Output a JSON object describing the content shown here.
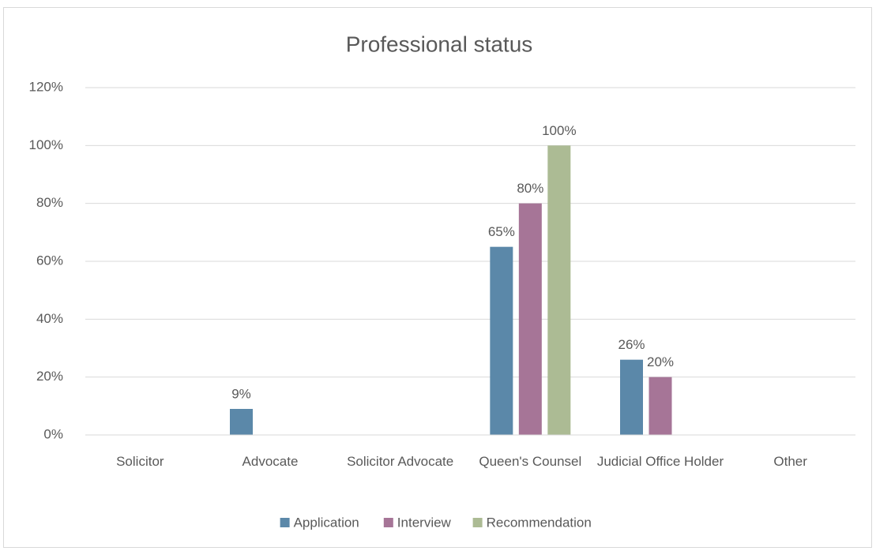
{
  "chart_data": {
    "type": "bar",
    "title": "Professional status",
    "categories": [
      "Solicitor",
      "Advocate",
      "Solicitor Advocate",
      "Queen's Counsel",
      "Judicial Office Holder",
      "Other"
    ],
    "series": [
      {
        "name": "Application",
        "color": "#5b88a9",
        "values": [
          null,
          9,
          null,
          65,
          26,
          null
        ],
        "value_labels": [
          null,
          "9%",
          null,
          "65%",
          "26%",
          null
        ]
      },
      {
        "name": "Interview",
        "color": "#a67597",
        "values": [
          null,
          null,
          null,
          80,
          20,
          null
        ],
        "value_labels": [
          null,
          null,
          null,
          "80%",
          "20%",
          null
        ]
      },
      {
        "name": "Recommendation",
        "color": "#acbb94",
        "values": [
          null,
          null,
          null,
          100,
          null,
          null
        ],
        "value_labels": [
          null,
          null,
          null,
          "100%",
          null,
          null
        ]
      }
    ],
    "ylim": [
      0,
      120
    ],
    "yticks": [
      {
        "value": 0,
        "label": "0%"
      },
      {
        "value": 20,
        "label": "20%"
      },
      {
        "value": 40,
        "label": "40%"
      },
      {
        "value": 60,
        "label": "60%"
      },
      {
        "value": 80,
        "label": "80%"
      },
      {
        "value": 100,
        "label": "100%"
      },
      {
        "value": 120,
        "label": "120%"
      }
    ],
    "grid": true,
    "legend": "bottom"
  }
}
